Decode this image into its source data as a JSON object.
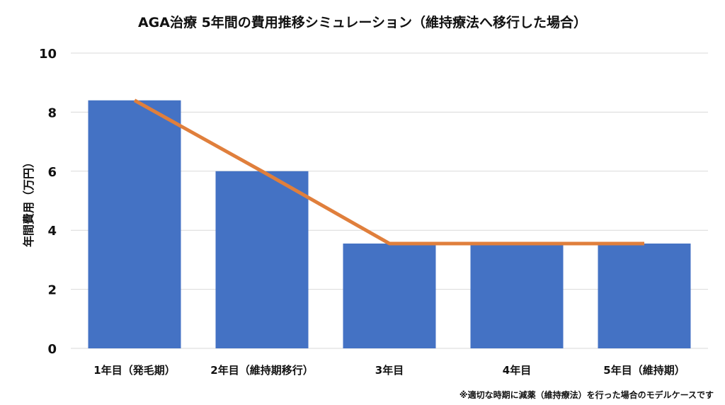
{
  "chart_data": {
    "type": "bar",
    "title": "AGA治療 5年間の費用推移シミュレーション（維持療法へ移行した場合）",
    "xlabel": "",
    "ylabel": "年間費用（万円）",
    "ylim": [
      0,
      10
    ],
    "yticks": [
      0,
      2,
      4,
      6,
      8,
      10
    ],
    "grid": true,
    "categories": [
      "1年目（発毛期）",
      "2年目（維持期移行）",
      "3年目",
      "4年目",
      "5年目（維持期）"
    ],
    "series": [
      {
        "type": "bar",
        "values": [
          8.4,
          6.0,
          3.55,
          3.55,
          3.55
        ],
        "color": "#4472C4"
      },
      {
        "type": "line",
        "values": [
          8.4,
          6.0,
          3.55,
          3.55,
          3.55
        ],
        "color": "#E07F3C"
      }
    ],
    "footnote": "※適切な時期に減薬（維持療法）を行った場合のモデルケースです"
  }
}
